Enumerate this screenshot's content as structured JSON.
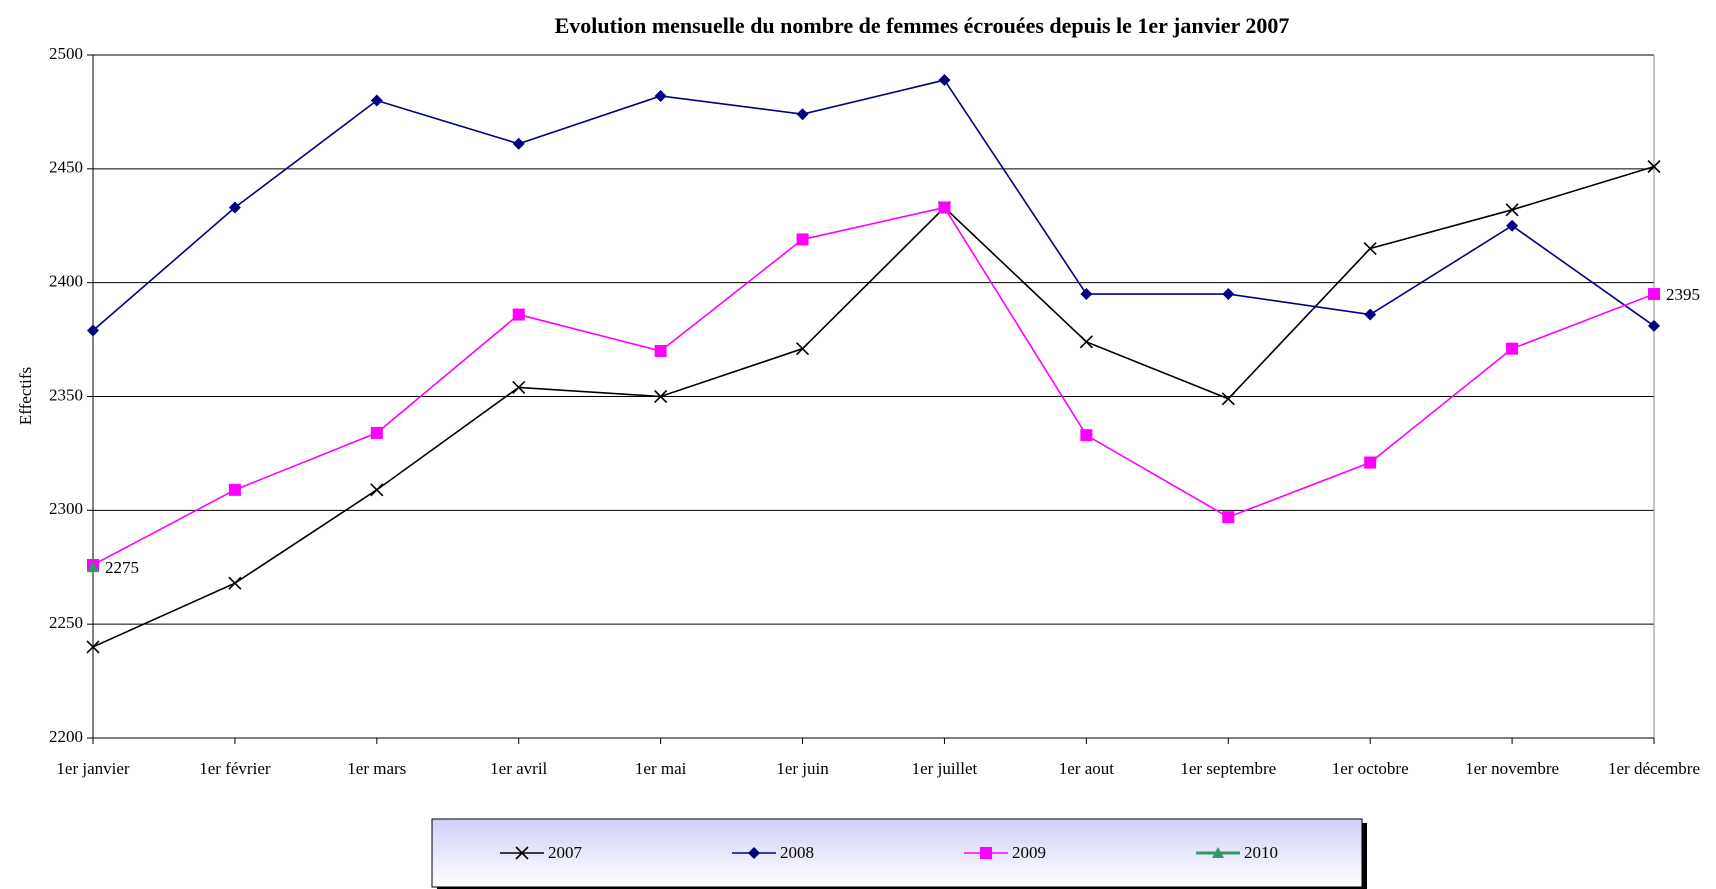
{
  "chart_data": {
    "type": "line",
    "title": "Evolution mensuelle du nombre de femmes écrouées depuis le 1er janvier 2007",
    "y_label": "Effectifs",
    "categories": [
      "1er janvier",
      "1er février",
      "1er mars",
      "1er avril",
      "1er mai",
      "1er juin",
      "1er juillet",
      "1er aout",
      "1er septembre",
      "1er octobre",
      "1er novembre",
      "1er décembre"
    ],
    "series": [
      {
        "name": "2007",
        "color": "#000000",
        "marker": "x",
        "values": [
          2240,
          2268,
          2309,
          2354,
          2350,
          2371,
          2433,
          2374,
          2349,
          2415,
          2432,
          2451
        ]
      },
      {
        "name": "2008",
        "color": "#000080",
        "marker": "diamond",
        "values": [
          2379,
          2433,
          2480,
          2461,
          2482,
          2474,
          2489,
          2395,
          2395,
          2386,
          2425,
          2381
        ]
      },
      {
        "name": "2009",
        "color": "#FF00FF",
        "marker": "square",
        "values": [
          2276,
          2309,
          2334,
          2386,
          2370,
          2419,
          2433,
          2333,
          2297,
          2321,
          2371,
          2395
        ]
      },
      {
        "name": "2010",
        "color": "#339966",
        "marker": "triangle",
        "values": [
          2275,
          null,
          null,
          null,
          null,
          null,
          null,
          null,
          null,
          null,
          null,
          null
        ]
      }
    ],
    "ylim": [
      2200,
      2500
    ],
    "yticks": [
      2200,
      2250,
      2300,
      2350,
      2400,
      2450,
      2500
    ],
    "grid": true
  }
}
